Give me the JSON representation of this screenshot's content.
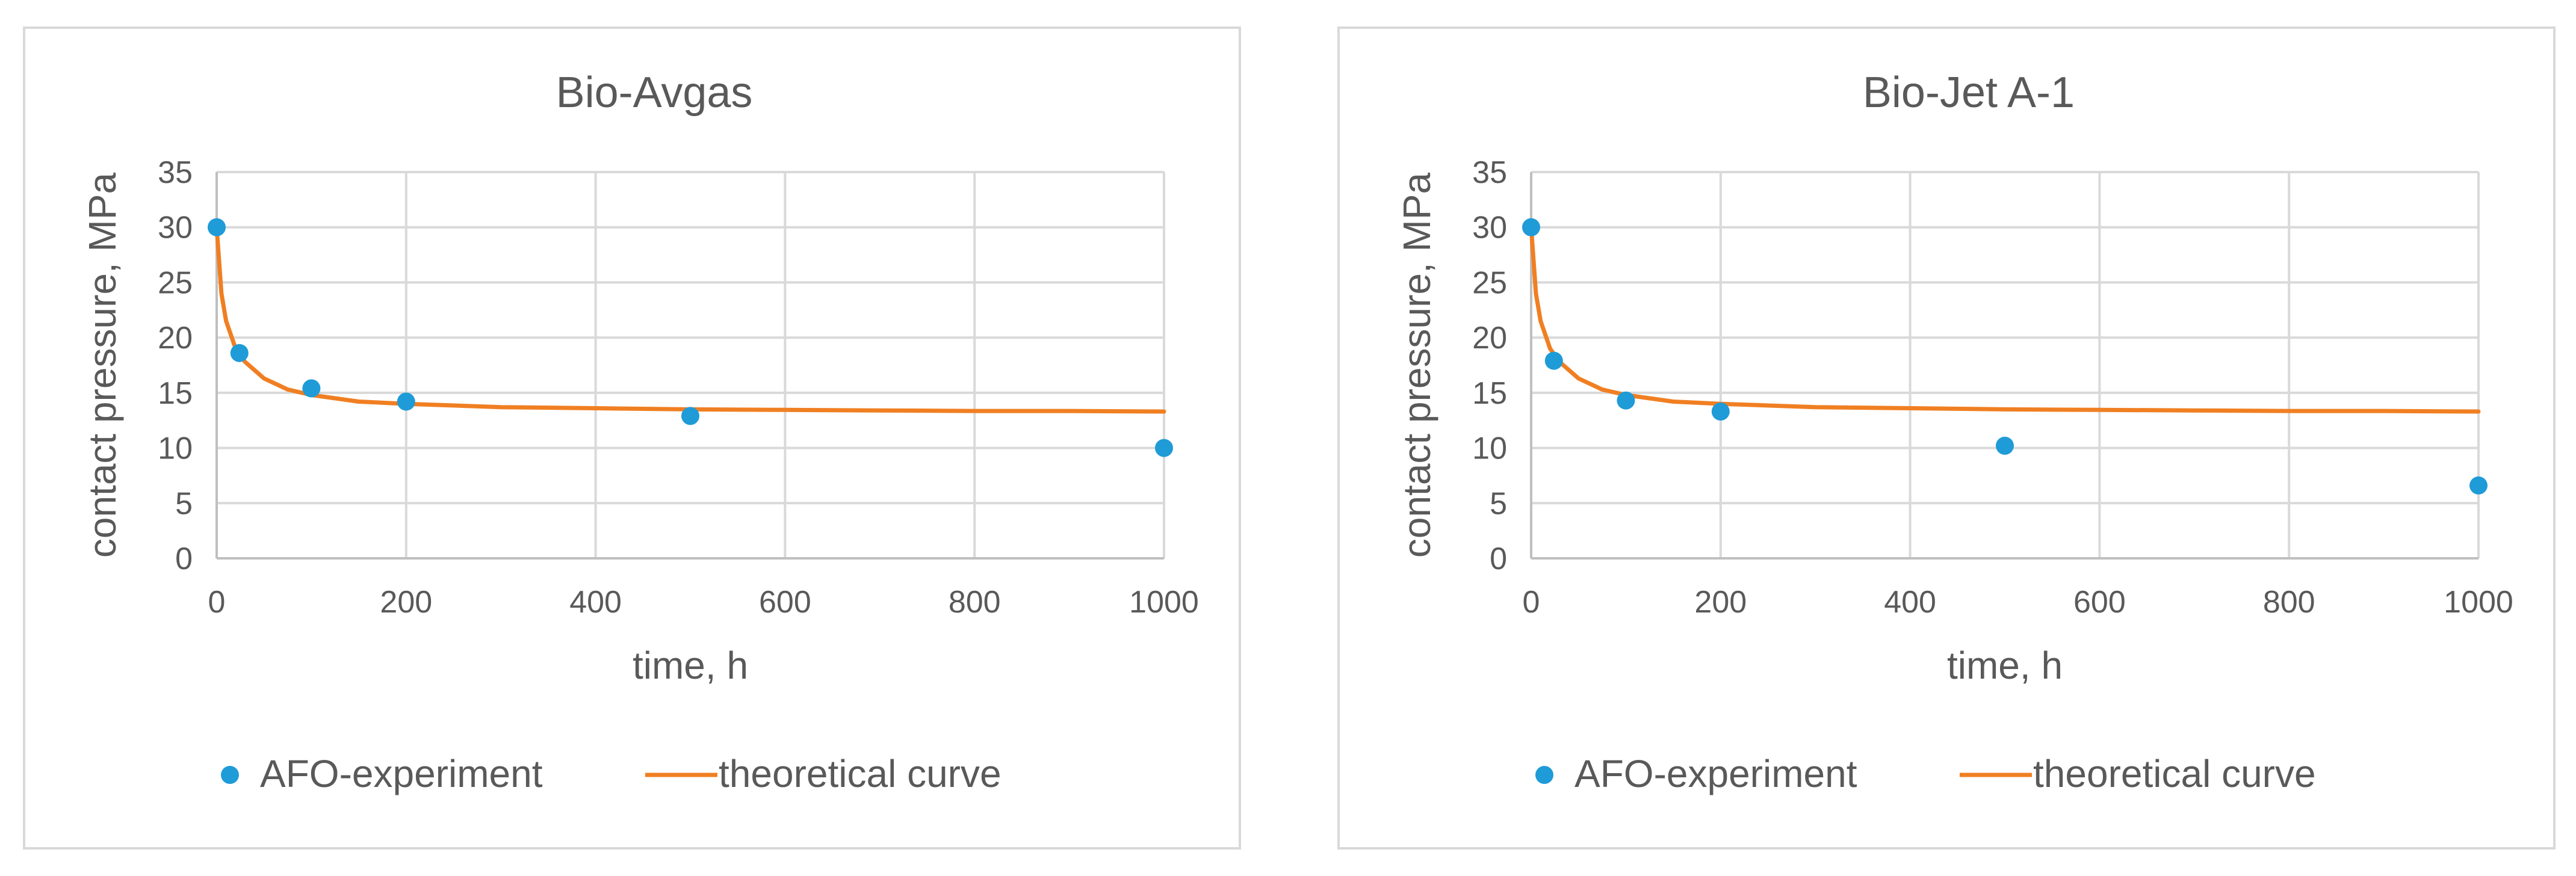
{
  "chart_data": [
    {
      "type": "scatter",
      "title": "Bio-Avgas",
      "xlabel": "time, h",
      "ylabel": "contact pressure, MPa",
      "xlim": [
        0,
        1000
      ],
      "ylim": [
        0,
        35
      ],
      "xticks": [
        0,
        200,
        400,
        600,
        800,
        1000
      ],
      "yticks": [
        0,
        5,
        10,
        15,
        20,
        25,
        30,
        35
      ],
      "x_tick_labels": [
        "0",
        "200",
        "400",
        "600",
        "800",
        "1000"
      ],
      "y_tick_labels": [
        "0",
        "5",
        "10",
        "15",
        "20",
        "25",
        "30",
        "35"
      ],
      "grid": true,
      "legend_position": "bottom",
      "series": [
        {
          "name": "AFO-experiment",
          "kind": "points",
          "color": "#1f9bd7",
          "x": [
            0,
            24,
            100,
            200,
            500,
            1000
          ],
          "y": [
            30,
            18.6,
            15.4,
            14.2,
            12.9,
            10.0
          ]
        },
        {
          "name": "theoretical curve",
          "kind": "line",
          "color": "#f07f22",
          "x": [
            0,
            5,
            10,
            20,
            30,
            50,
            75,
            100,
            150,
            200,
            300,
            400,
            500,
            600,
            700,
            800,
            900,
            1000
          ],
          "y": [
            30,
            24.0,
            21.5,
            19.0,
            17.8,
            16.3,
            15.3,
            14.8,
            14.2,
            14.0,
            13.7,
            13.6,
            13.5,
            13.45,
            13.4,
            13.35,
            13.35,
            13.3
          ]
        }
      ]
    },
    {
      "type": "scatter",
      "title": "Bio-Jet A-1",
      "xlabel": "time, h",
      "ylabel": "contact pressure, MPa",
      "xlim": [
        0,
        1000
      ],
      "ylim": [
        0,
        35
      ],
      "xticks": [
        0,
        200,
        400,
        600,
        800,
        1000
      ],
      "yticks": [
        0,
        5,
        10,
        15,
        20,
        25,
        30,
        35
      ],
      "x_tick_labels": [
        "0",
        "200",
        "400",
        "600",
        "800",
        "1000"
      ],
      "y_tick_labels": [
        "0",
        "5",
        "10",
        "15",
        "20",
        "25",
        "30",
        "35"
      ],
      "grid": true,
      "legend_position": "bottom",
      "series": [
        {
          "name": "AFO-experiment",
          "kind": "points",
          "color": "#1f9bd7",
          "x": [
            0,
            24,
            100,
            200,
            500,
            1000
          ],
          "y": [
            30,
            17.9,
            14.3,
            13.3,
            10.2,
            6.6
          ]
        },
        {
          "name": "theoretical curve",
          "kind": "line",
          "color": "#f07f22",
          "x": [
            0,
            5,
            10,
            20,
            30,
            50,
            75,
            100,
            150,
            200,
            300,
            400,
            500,
            600,
            700,
            800,
            900,
            1000
          ],
          "y": [
            30,
            24.0,
            21.5,
            19.0,
            17.8,
            16.3,
            15.3,
            14.8,
            14.2,
            14.0,
            13.7,
            13.6,
            13.5,
            13.45,
            13.4,
            13.35,
            13.35,
            13.3
          ]
        }
      ]
    }
  ]
}
